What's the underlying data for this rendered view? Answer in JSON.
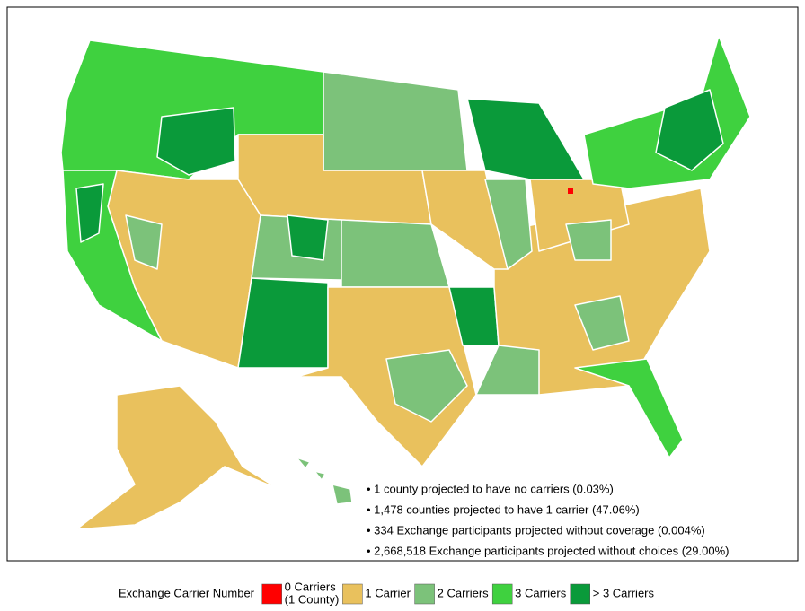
{
  "notes": [
    "• 1 county projected to have no carriers (0.03%)",
    "• 1,478 counties projected to have 1 carrier (47.06%)",
    "• 334 Exchange participants projected without coverage (0.004%)",
    "• 2,668,518 Exchange participants projected without choices (29.00%)"
  ],
  "legend": {
    "title": "Exchange Carrier Number",
    "items": [
      {
        "label": "0 Carriers",
        "sublabel": "(1 County)",
        "color": "#ff0000"
      },
      {
        "label": "1 Carrier",
        "color": "#e9c15d"
      },
      {
        "label": "2 Carriers",
        "color": "#7cc27a"
      },
      {
        "label": "3 Carriers",
        "color": "#3fd13f"
      },
      {
        "label": "> 3 Carriers",
        "color": "#0a9a3a"
      }
    ]
  }
}
